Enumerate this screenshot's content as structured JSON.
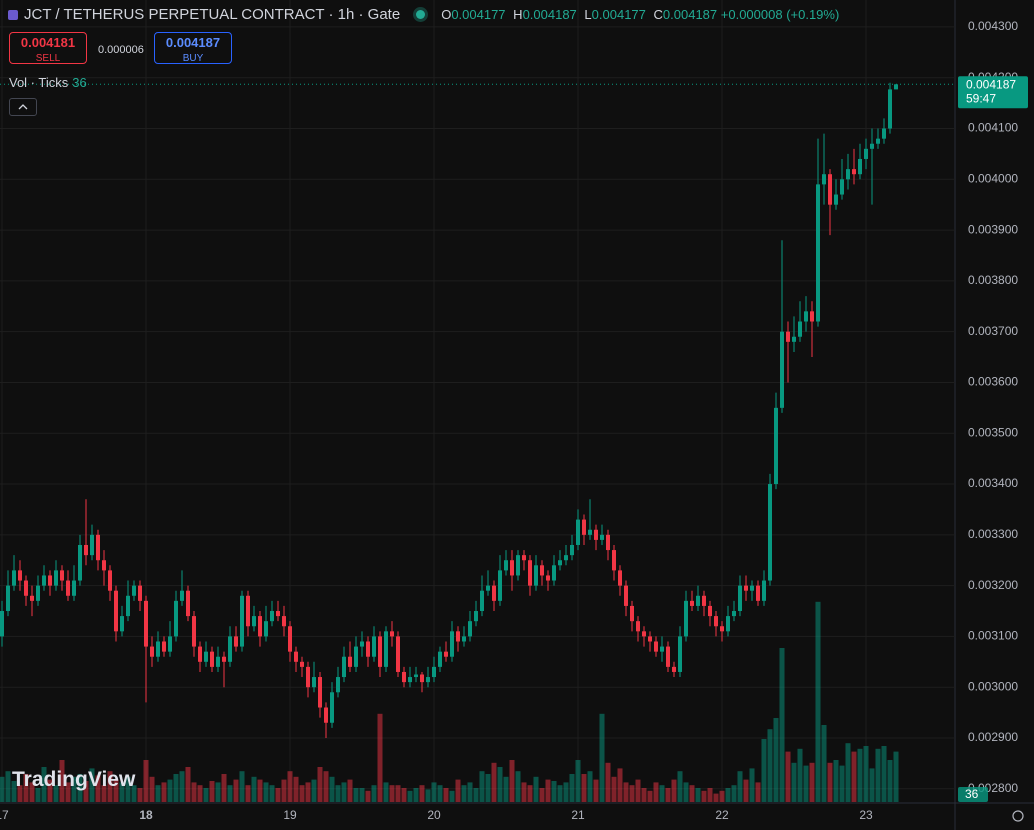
{
  "header": {
    "symbol": "JCT / TETHERUS PERPETUAL CONTRACT · 1h · Gate",
    "ohlc_labels": [
      "O",
      "H",
      "L",
      "C"
    ],
    "change": "+0.000008 (+0.19%)",
    "sell_price": 0.004181,
    "sell_label": "SELL",
    "spread": 6e-06,
    "buy_price": 0.004187,
    "buy_label": "BUY",
    "volume_label": "Vol · Ticks",
    "countdown": "59:47",
    "logo": "TradingView"
  },
  "chart_data": {
    "type": "candlestick",
    "up_color": "#089981",
    "down_color": "#f23645",
    "grid": true,
    "categories": [
      "17",
      null,
      null,
      null,
      null,
      null,
      null,
      null,
      null,
      null,
      null,
      null,
      null,
      null,
      null,
      null,
      null,
      null,
      null,
      null,
      null,
      null,
      null,
      null,
      "18",
      null,
      null,
      null,
      null,
      null,
      null,
      null,
      null,
      null,
      null,
      null,
      null,
      null,
      null,
      null,
      null,
      null,
      null,
      null,
      null,
      null,
      null,
      null,
      "19",
      null,
      null,
      null,
      null,
      null,
      null,
      null,
      null,
      null,
      null,
      null,
      null,
      null,
      null,
      null,
      null,
      null,
      null,
      null,
      null,
      null,
      null,
      null,
      "20",
      null,
      null,
      null,
      null,
      null,
      null,
      null,
      null,
      null,
      null,
      null,
      null,
      null,
      null,
      null,
      null,
      null,
      null,
      null,
      null,
      null,
      null,
      null,
      "21",
      null,
      null,
      null,
      null,
      null,
      null,
      null,
      null,
      null,
      null,
      null,
      null,
      null,
      null,
      null,
      null,
      null,
      null,
      null,
      null,
      null,
      null,
      null,
      "22",
      null,
      null,
      null,
      null,
      null,
      null,
      null,
      null,
      null,
      null,
      null,
      null,
      null,
      null,
      null,
      null,
      null,
      null,
      null,
      null,
      null,
      null,
      null,
      "23",
      null,
      null,
      null,
      null,
      null
    ],
    "open": [
      0.0031,
      0.00315,
      0.0032,
      0.00323,
      0.00321,
      0.00318,
      0.00317,
      0.0032,
      0.00322,
      0.0032,
      0.00323,
      0.00321,
      0.00318,
      0.00321,
      0.00328,
      0.00326,
      0.0033,
      0.00325,
      0.00323,
      0.00319,
      0.00311,
      0.00314,
      0.00318,
      0.0032,
      0.00317,
      0.00308,
      0.00306,
      0.00309,
      0.00307,
      0.0031,
      0.00317,
      0.00319,
      0.00314,
      0.00308,
      0.00305,
      0.00307,
      0.00304,
      0.00306,
      0.00305,
      0.0031,
      0.00308,
      0.00318,
      0.00312,
      0.00314,
      0.0031,
      0.00313,
      0.00315,
      0.00314,
      0.00312,
      0.00307,
      0.00305,
      0.00304,
      0.003,
      0.00302,
      0.00296,
      0.00293,
      0.00299,
      0.00302,
      0.00306,
      0.00304,
      0.00308,
      0.00309,
      0.00306,
      0.0031,
      0.00304,
      0.00311,
      0.0031,
      0.00303,
      0.00301,
      0.00302,
      0.003025,
      0.00301,
      0.00302,
      0.00304,
      0.00307,
      0.00306,
      0.00311,
      0.00309,
      0.0031,
      0.00313,
      0.00315,
      0.00319,
      0.0032,
      0.00317,
      0.00323,
      0.00325,
      0.00322,
      0.00326,
      0.00325,
      0.0032,
      0.00324,
      0.00322,
      0.00321,
      0.00324,
      0.00325,
      0.00326,
      0.00328,
      0.00333,
      0.0033,
      0.00331,
      0.00329,
      0.0033,
      0.00327,
      0.00323,
      0.0032,
      0.00316,
      0.00313,
      0.00311,
      0.0031,
      0.00309,
      0.00307,
      0.00308,
      0.00304,
      0.00303,
      0.0031,
      0.00317,
      0.00316,
      0.00318,
      0.00316,
      0.00314,
      0.00312,
      0.00311,
      0.00314,
      0.00315,
      0.0032,
      0.00319,
      0.0032,
      0.00317,
      0.00321,
      0.0034,
      0.00355,
      0.0037,
      0.00368,
      0.00369,
      0.00372,
      0.00374,
      0.00372,
      0.00399,
      0.00401,
      0.00395,
      0.00397,
      0.004,
      0.00402,
      0.00401,
      0.00404,
      0.00406,
      0.00407,
      0.00408,
      0.0041,
      0.004177
    ],
    "high": [
      0.00317,
      0.00323,
      0.00326,
      0.00325,
      0.00322,
      0.0032,
      0.00322,
      0.00324,
      0.00323,
      0.00325,
      0.00324,
      0.00323,
      0.00324,
      0.0033,
      0.00337,
      0.00332,
      0.00331,
      0.00327,
      0.00324,
      0.0032,
      0.00316,
      0.00321,
      0.00321,
      0.00321,
      0.00318,
      0.0031,
      0.00311,
      0.0031,
      0.00313,
      0.00319,
      0.00323,
      0.0032,
      0.00315,
      0.00309,
      0.00309,
      0.00308,
      0.00308,
      0.00307,
      0.00312,
      0.00312,
      0.00319,
      0.00319,
      0.00316,
      0.00315,
      0.00316,
      0.00317,
      0.00317,
      0.00316,
      0.00313,
      0.00308,
      0.00306,
      0.00305,
      0.00305,
      0.00303,
      0.00297,
      0.00301,
      0.00304,
      0.00308,
      0.00309,
      0.0031,
      0.00311,
      0.0031,
      0.00312,
      0.00311,
      0.00312,
      0.00313,
      0.00311,
      0.00304,
      0.00304,
      0.00304,
      0.00303,
      0.00304,
      0.00306,
      0.00308,
      0.00309,
      0.00313,
      0.00312,
      0.00312,
      0.00315,
      0.00317,
      0.00322,
      0.00323,
      0.00321,
      0.00326,
      0.00327,
      0.00327,
      0.00327,
      0.00327,
      0.00326,
      0.00326,
      0.00325,
      0.00323,
      0.00326,
      0.00327,
      0.00328,
      0.0033,
      0.00335,
      0.00334,
      0.00337,
      0.00332,
      0.00332,
      0.00331,
      0.00328,
      0.00324,
      0.00321,
      0.00317,
      0.00314,
      0.00312,
      0.00311,
      0.0031,
      0.0031,
      0.00309,
      0.00305,
      0.00312,
      0.00319,
      0.00319,
      0.0032,
      0.00319,
      0.00317,
      0.00315,
      0.00313,
      0.00316,
      0.00317,
      0.00322,
      0.00322,
      0.00321,
      0.00321,
      0.00323,
      0.00342,
      0.00358,
      0.00388,
      0.00372,
      0.00373,
      0.00376,
      0.00377,
      0.00376,
      0.00408,
      0.00409,
      0.00402,
      0.004,
      0.00404,
      0.00405,
      0.00406,
      0.00407,
      0.00408,
      0.0041,
      0.0041,
      0.00412,
      0.00419,
      0.004187
    ],
    "low": [
      0.00308,
      0.00314,
      0.00319,
      0.00319,
      0.00316,
      0.00314,
      0.00316,
      0.00319,
      0.00318,
      0.00319,
      0.00319,
      0.00317,
      0.00317,
      0.0032,
      0.00324,
      0.00325,
      0.00323,
      0.0032,
      0.00317,
      0.00309,
      0.0031,
      0.00313,
      0.00317,
      0.00315,
      0.00297,
      0.00304,
      0.00305,
      0.00306,
      0.00306,
      0.00309,
      0.00316,
      0.00313,
      0.00306,
      0.00303,
      0.00304,
      0.00303,
      0.00303,
      0.003,
      0.00304,
      0.00307,
      0.00307,
      0.0031,
      0.00311,
      0.00308,
      0.00309,
      0.00312,
      0.00313,
      0.0031,
      0.00305,
      0.00303,
      0.00302,
      0.00298,
      0.00299,
      0.00294,
      0.0029,
      0.00292,
      0.00298,
      0.00301,
      0.00303,
      0.00303,
      0.00306,
      0.00304,
      0.00305,
      0.00302,
      0.00303,
      0.00308,
      0.00302,
      0.003,
      0.003,
      0.00301,
      0.00299,
      0.003,
      0.00301,
      0.00303,
      0.00305,
      0.00305,
      0.00307,
      0.00308,
      0.00309,
      0.00312,
      0.00314,
      0.00318,
      0.00315,
      0.00316,
      0.00322,
      0.00319,
      0.00321,
      0.00323,
      0.00318,
      0.00319,
      0.0032,
      0.00319,
      0.0032,
      0.00323,
      0.00324,
      0.00325,
      0.00327,
      0.00328,
      0.00329,
      0.00327,
      0.00328,
      0.00325,
      0.00321,
      0.00318,
      0.00314,
      0.00311,
      0.00309,
      0.00308,
      0.00307,
      0.00306,
      0.00305,
      0.00303,
      0.00302,
      0.00302,
      0.00309,
      0.00315,
      0.00315,
      0.00314,
      0.00312,
      0.0031,
      0.00309,
      0.0031,
      0.00313,
      0.00314,
      0.00317,
      0.00317,
      0.00316,
      0.00316,
      0.0032,
      0.00339,
      0.00354,
      0.0036,
      0.00366,
      0.00368,
      0.0037,
      0.00365,
      0.00371,
      0.00395,
      0.00389,
      0.00394,
      0.00396,
      0.00398,
      0.00399,
      0.004,
      0.00402,
      0.00395,
      0.00406,
      0.00407,
      0.00409,
      0.004177
    ],
    "close": [
      0.00315,
      0.0032,
      0.00323,
      0.00321,
      0.00318,
      0.00317,
      0.0032,
      0.00322,
      0.0032,
      0.00323,
      0.00321,
      0.00318,
      0.00321,
      0.00328,
      0.00326,
      0.0033,
      0.00325,
      0.00323,
      0.00319,
      0.00311,
      0.00314,
      0.00318,
      0.0032,
      0.00317,
      0.00308,
      0.00306,
      0.00309,
      0.00307,
      0.0031,
      0.00317,
      0.00319,
      0.00314,
      0.00308,
      0.00305,
      0.00307,
      0.00304,
      0.00306,
      0.00305,
      0.0031,
      0.00308,
      0.00318,
      0.00312,
      0.00314,
      0.0031,
      0.00313,
      0.00315,
      0.00314,
      0.00312,
      0.00307,
      0.00305,
      0.00304,
      0.003,
      0.00302,
      0.00296,
      0.00293,
      0.00299,
      0.00302,
      0.00306,
      0.00304,
      0.00308,
      0.00309,
      0.00306,
      0.0031,
      0.00304,
      0.00311,
      0.0031,
      0.00303,
      0.00301,
      0.00302,
      0.003025,
      0.00301,
      0.00302,
      0.00304,
      0.00307,
      0.00306,
      0.00311,
      0.00309,
      0.0031,
      0.00313,
      0.00315,
      0.00319,
      0.0032,
      0.00317,
      0.00323,
      0.00325,
      0.00322,
      0.00326,
      0.00325,
      0.0032,
      0.00324,
      0.00322,
      0.00321,
      0.00324,
      0.00325,
      0.00326,
      0.00328,
      0.00333,
      0.0033,
      0.00331,
      0.00329,
      0.0033,
      0.00327,
      0.00323,
      0.0032,
      0.00316,
      0.00313,
      0.00311,
      0.0031,
      0.00309,
      0.00307,
      0.00308,
      0.00304,
      0.00303,
      0.0031,
      0.00317,
      0.00316,
      0.00318,
      0.00316,
      0.00314,
      0.00312,
      0.00311,
      0.00314,
      0.00315,
      0.0032,
      0.00319,
      0.0032,
      0.00317,
      0.00321,
      0.0034,
      0.00355,
      0.0037,
      0.00368,
      0.00369,
      0.00372,
      0.00374,
      0.00372,
      0.00399,
      0.00401,
      0.00395,
      0.00397,
      0.004,
      0.00402,
      0.00401,
      0.00404,
      0.00406,
      0.00407,
      0.00408,
      0.0041,
      0.004177,
      0.004187
    ],
    "volume": [
      18,
      22,
      15,
      12,
      20,
      14,
      10,
      25,
      16,
      12,
      30,
      14,
      18,
      20,
      15,
      24,
      19,
      12,
      22,
      16,
      14,
      18,
      12,
      10,
      30,
      18,
      12,
      14,
      16,
      20,
      22,
      25,
      14,
      12,
      10,
      15,
      14,
      20,
      12,
      16,
      22,
      12,
      18,
      16,
      14,
      12,
      10,
      16,
      22,
      18,
      12,
      14,
      16,
      25,
      22,
      18,
      12,
      14,
      16,
      10,
      10,
      8,
      12,
      63,
      14,
      12,
      12,
      10,
      8,
      10,
      12,
      9,
      14,
      12,
      10,
      8,
      16,
      12,
      14,
      10,
      22,
      20,
      28,
      25,
      18,
      30,
      22,
      14,
      12,
      18,
      10,
      16,
      15,
      12,
      14,
      20,
      30,
      20,
      22,
      16,
      63,
      28,
      18,
      24,
      14,
      12,
      16,
      10,
      8,
      14,
      12,
      10,
      16,
      22,
      14,
      12,
      10,
      8,
      10,
      6,
      8,
      10,
      12,
      22,
      16,
      24,
      14,
      45,
      52,
      60,
      110,
      36,
      28,
      38,
      26,
      28,
      143,
      55,
      28,
      30,
      26,
      42,
      36,
      38,
      40,
      24,
      38,
      40,
      30,
      36
    ],
    "ylim": [
      0.002772,
      0.004353
    ],
    "volume_ylim": [
      0,
      160
    ],
    "yticks": [
      {
        "value": 0.0028,
        "label": "0.002800"
      },
      {
        "value": 0.0029,
        "label": "0.002900"
      },
      {
        "value": 0.003,
        "label": "0.003000"
      },
      {
        "value": 0.0031,
        "label": "0.003100"
      },
      {
        "value": 0.0032,
        "label": "0.003200"
      },
      {
        "value": 0.0033,
        "label": "0.003300"
      },
      {
        "value": 0.0034,
        "label": "0.003400"
      },
      {
        "value": 0.0035,
        "label": "0.003500"
      },
      {
        "value": 0.0036,
        "label": "0.003600"
      },
      {
        "value": 0.0037,
        "label": "0.003700"
      },
      {
        "value": 0.0038,
        "label": "0.003800"
      },
      {
        "value": 0.0039,
        "label": "0.003900"
      },
      {
        "value": 0.004,
        "label": "0.004000"
      },
      {
        "value": 0.0041,
        "label": "0.004100"
      },
      {
        "value": 0.0042,
        "label": "0.004200"
      },
      {
        "value": 0.0043,
        "label": "0.004300"
      }
    ]
  }
}
